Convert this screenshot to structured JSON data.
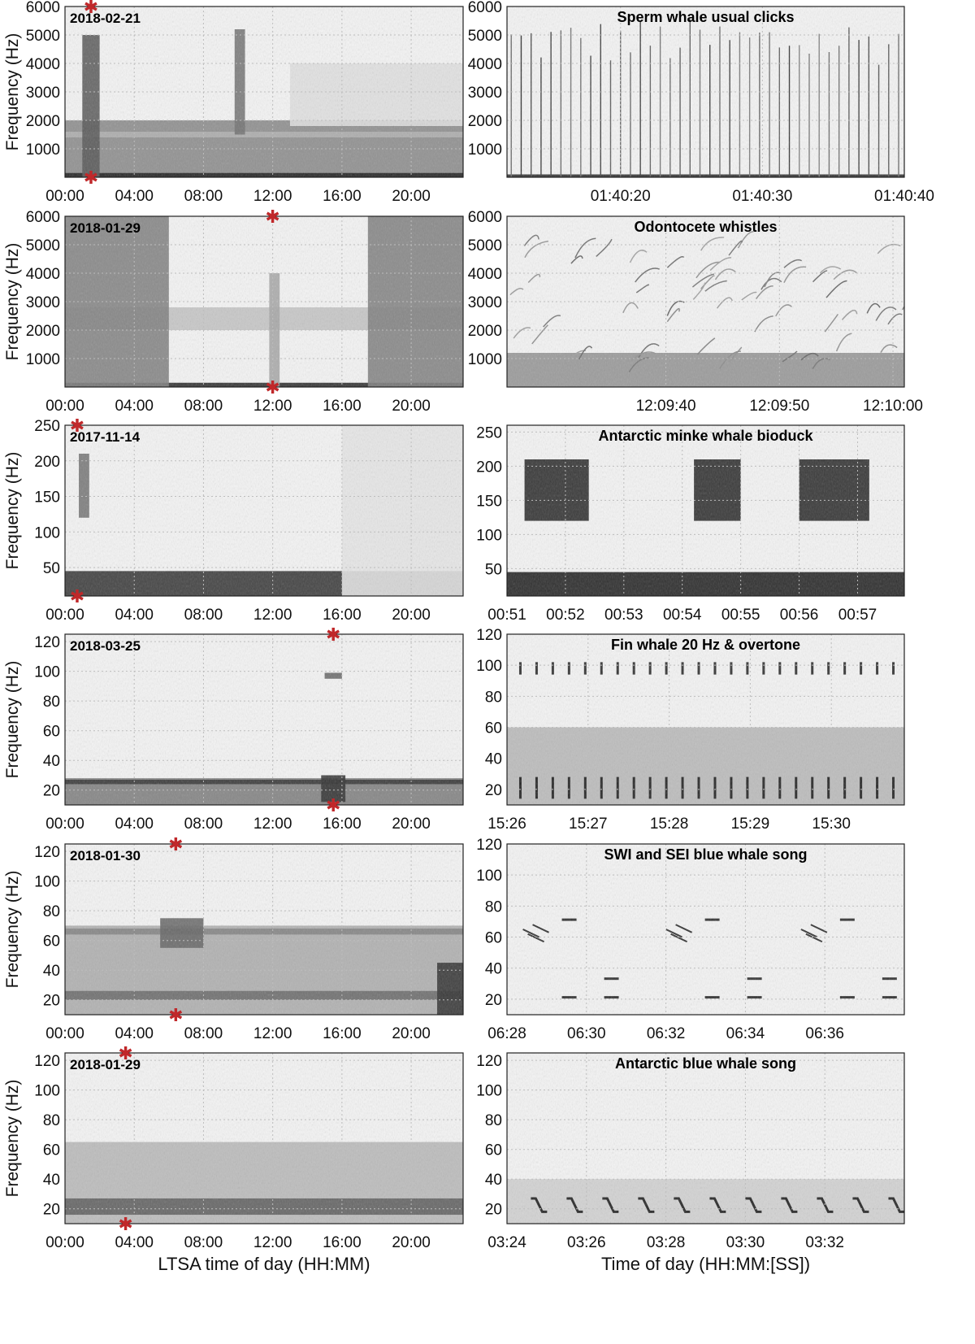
{
  "chart_data": [
    {
      "type": "heatmap",
      "panel": "left",
      "date_label": "2018-02-21",
      "ylabel": "Frequency (Hz)",
      "ylim": [
        0,
        6000
      ],
      "yticks": [
        1000,
        2000,
        3000,
        4000,
        5000,
        6000
      ],
      "xlim_hours": [
        0,
        23
      ],
      "xticks": [
        "00:00",
        "04:00",
        "08:00",
        "12:00",
        "16:00",
        "20:00"
      ],
      "marker_time_hours": 1.5,
      "events": [
        {
          "t0": 1.0,
          "t1": 2.0,
          "f0": 0,
          "f1": 5000,
          "level": 0.65
        },
        {
          "t0": 9.8,
          "t1": 10.4,
          "f0": 1500,
          "f1": 5200,
          "level": 0.55
        },
        {
          "t0": 13.0,
          "t1": 23.0,
          "f0": 1800,
          "f1": 4000,
          "level": 0.12
        }
      ],
      "bands": [
        {
          "f0": 0,
          "f1": 2000,
          "level": 0.5
        },
        {
          "f0": 1400,
          "f1": 1600,
          "level": 0.3
        },
        {
          "f0": 0,
          "f1": 150,
          "level": 0.9
        }
      ]
    },
    {
      "type": "heatmap",
      "panel": "right",
      "title": "Sperm whale usual clicks",
      "ylim": [
        0,
        6000
      ],
      "yticks": [
        1000,
        2000,
        3000,
        4000,
        5000,
        6000
      ],
      "x_start": "01:40:12",
      "x_end": "01:40:40",
      "xticks": [
        "01:40:20",
        "01:40:30",
        "01:40:40"
      ],
      "xtick_pos": [
        8,
        18,
        28
      ],
      "xlim": [
        0,
        28
      ],
      "events": [
        {
          "kind": "clicks",
          "interval_s": 0.7,
          "f0": 0,
          "f1": 5600,
          "level": 0.8
        }
      ],
      "bands": [
        {
          "f0": 0,
          "f1": 100,
          "level": 0.9
        }
      ]
    },
    {
      "type": "heatmap",
      "panel": "left",
      "date_label": "2018-01-29",
      "ylabel": "Frequency (Hz)",
      "ylim": [
        0,
        6000
      ],
      "yticks": [
        1000,
        2000,
        3000,
        4000,
        5000,
        6000
      ],
      "xlim_hours": [
        0,
        23
      ],
      "xticks": [
        "00:00",
        "04:00",
        "08:00",
        "12:00",
        "16:00",
        "20:00"
      ],
      "marker_time_hours": 12.0,
      "events": [
        {
          "t0": 0,
          "t1": 6.0,
          "f0": 0,
          "f1": 6000,
          "level": 0.5
        },
        {
          "t0": 17.5,
          "t1": 23.0,
          "f0": 0,
          "f1": 6000,
          "level": 0.5
        },
        {
          "t0": 11.8,
          "t1": 12.4,
          "f0": 0,
          "f1": 4000,
          "level": 0.35
        }
      ],
      "bands": [
        {
          "f0": 2000,
          "f1": 2800,
          "level": 0.25
        },
        {
          "f0": 0,
          "f1": 150,
          "level": 0.9
        }
      ]
    },
    {
      "type": "heatmap",
      "panel": "right",
      "title": "Odontocete whistles",
      "ylim": [
        0,
        6000
      ],
      "yticks": [
        1000,
        2000,
        3000,
        4000,
        5000,
        6000
      ],
      "x_start": "12:09:26",
      "x_end": "12:10:01",
      "xticks": [
        "12:09:40",
        "12:09:50",
        "12:10:00"
      ],
      "xtick_pos": [
        14,
        24,
        34
      ],
      "xlim": [
        0,
        35
      ],
      "events": [
        {
          "kind": "whistles",
          "f0": 500,
          "f1": 5000,
          "level": 0.6
        }
      ],
      "bands": [
        {
          "f0": 0,
          "f1": 1200,
          "level": 0.45
        }
      ]
    },
    {
      "type": "heatmap",
      "panel": "left",
      "date_label": "2017-11-14",
      "ylabel": "Frequency (Hz)",
      "ylim": [
        10,
        250
      ],
      "yticks": [
        50,
        100,
        150,
        200,
        250
      ],
      "xlim_hours": [
        0,
        23
      ],
      "xticks": [
        "00:00",
        "04:00",
        "08:00",
        "12:00",
        "16:00",
        "20:00"
      ],
      "marker_time_hours": 0.7,
      "events": [
        {
          "t0": 0.8,
          "t1": 1.4,
          "f0": 120,
          "f1": 210,
          "level": 0.55
        },
        {
          "t0": 16.0,
          "t1": 23.0,
          "f0": 10,
          "f1": 250,
          "level": 0.1
        }
      ],
      "bands": [
        {
          "f0": 10,
          "f1": 45,
          "level": 0.85
        }
      ]
    },
    {
      "type": "heatmap",
      "panel": "right",
      "title": "Antarctic minke whale bioduck",
      "ylim": [
        10,
        260
      ],
      "yticks": [
        50,
        100,
        150,
        200,
        250
      ],
      "xticks": [
        "00:51",
        "00:52",
        "00:53",
        "00:54",
        "00:55",
        "00:56",
        "00:57"
      ],
      "xtick_pos": [
        0,
        1,
        2,
        3,
        4,
        5,
        6
      ],
      "xlim": [
        0,
        6.8
      ],
      "events": [
        {
          "t0": 0.3,
          "t1": 1.4,
          "f0": 120,
          "f1": 210,
          "level": 0.85
        },
        {
          "t0": 3.2,
          "t1": 4.0,
          "f0": 120,
          "f1": 210,
          "level": 0.85
        },
        {
          "t0": 5.0,
          "t1": 6.2,
          "f0": 120,
          "f1": 210,
          "level": 0.85
        }
      ],
      "bands": [
        {
          "f0": 10,
          "f1": 45,
          "level": 0.95
        }
      ]
    },
    {
      "type": "heatmap",
      "panel": "left",
      "date_label": "2018-03-25",
      "ylabel": "Frequency (Hz)",
      "ylim": [
        10,
        125
      ],
      "yticks": [
        20,
        40,
        60,
        80,
        100,
        120
      ],
      "xlim_hours": [
        0,
        23
      ],
      "xticks": [
        "00:00",
        "04:00",
        "08:00",
        "12:00",
        "16:00",
        "20:00"
      ],
      "marker_time_hours": 15.5,
      "events": [
        {
          "t0": 14.8,
          "t1": 16.2,
          "f0": 12,
          "f1": 30,
          "level": 0.8
        },
        {
          "t0": 15.0,
          "t1": 16.0,
          "f0": 95,
          "f1": 99,
          "level": 0.6
        }
      ],
      "bands": [
        {
          "f0": 10,
          "f1": 28,
          "level": 0.55
        },
        {
          "f0": 24,
          "f1": 27,
          "level": 0.8
        }
      ]
    },
    {
      "type": "heatmap",
      "panel": "right",
      "title": "Fin whale 20 Hz & overtone",
      "ylim": [
        10,
        120
      ],
      "yticks": [
        20,
        40,
        60,
        80,
        100,
        120
      ],
      "xticks": [
        "15:26",
        "15:27",
        "15:28",
        "15:29",
        "15:30"
      ],
      "xtick_pos": [
        0,
        1,
        2,
        3,
        4
      ],
      "xlim": [
        0,
        4.9
      ],
      "events": [
        {
          "kind": "pulses",
          "interval_min": 0.2,
          "f0": 14,
          "f1": 28,
          "level": 0.85
        },
        {
          "kind": "pulses",
          "interval_min": 0.2,
          "f0": 94,
          "f1": 102,
          "level": 0.8
        }
      ],
      "bands": [
        {
          "f0": 10,
          "f1": 60,
          "level": 0.3
        }
      ]
    },
    {
      "type": "heatmap",
      "panel": "left",
      "date_label": "2018-01-30",
      "ylabel": "Frequency (Hz)",
      "ylim": [
        10,
        125
      ],
      "yticks": [
        20,
        40,
        60,
        80,
        100,
        120
      ],
      "xlim_hours": [
        0,
        23
      ],
      "xticks": [
        "00:00",
        "04:00",
        "08:00",
        "12:00",
        "16:00",
        "20:00"
      ],
      "marker_time_hours": 6.4,
      "events": [
        {
          "t0": 5.5,
          "t1": 8.0,
          "f0": 55,
          "f1": 75,
          "level": 0.6
        },
        {
          "t0": 21.5,
          "t1": 23.0,
          "f0": 10,
          "f1": 45,
          "level": 0.8
        }
      ],
      "bands": [
        {
          "f0": 10,
          "f1": 70,
          "level": 0.35
        },
        {
          "f0": 64,
          "f1": 68,
          "level": 0.5
        },
        {
          "f0": 20,
          "f1": 26,
          "level": 0.6
        }
      ]
    },
    {
      "type": "heatmap",
      "panel": "right",
      "title": "SWI and SEI blue whale song",
      "ylim": [
        10,
        120
      ],
      "yticks": [
        20,
        40,
        60,
        80,
        100,
        120
      ],
      "xticks": [
        "06:28",
        "06:30",
        "06:32",
        "06:34",
        "06:36"
      ],
      "xtick_pos": [
        0,
        2,
        4,
        6,
        8
      ],
      "xlim": [
        0,
        10
      ],
      "events": [
        {
          "kind": "song",
          "f0": 18,
          "f1": 85,
          "level": 0.8
        }
      ],
      "bands": []
    },
    {
      "type": "heatmap",
      "panel": "left",
      "date_label": "2018-01-29",
      "ylabel": "Frequency (Hz)",
      "ylim": [
        10,
        125
      ],
      "yticks": [
        20,
        40,
        60,
        80,
        100,
        120
      ],
      "xlim_hours": [
        0,
        23
      ],
      "xticks": [
        "00:00",
        "04:00",
        "08:00",
        "12:00",
        "16:00",
        "20:00"
      ],
      "xlabel": "LTSA time of day (HH:MM)",
      "marker_time_hours": 3.5,
      "events": [],
      "bands": [
        {
          "f0": 10,
          "f1": 65,
          "level": 0.3
        },
        {
          "f0": 16,
          "f1": 27,
          "level": 0.65
        }
      ]
    },
    {
      "type": "heatmap",
      "panel": "right",
      "title": "Antarctic blue whale song",
      "ylim": [
        10,
        125
      ],
      "yticks": [
        20,
        40,
        60,
        80,
        100,
        120
      ],
      "xticks": [
        "03:24",
        "03:26",
        "03:28",
        "03:30",
        "03:32"
      ],
      "xtick_pos": [
        0,
        2,
        4,
        6,
        8
      ],
      "xlim": [
        0,
        10
      ],
      "xlabel": "Time of day (HH:MM:[SS])",
      "events": [
        {
          "kind": "zcalls",
          "f0": 18,
          "f1": 27,
          "level": 0.85
        }
      ],
      "bands": [
        {
          "f0": 10,
          "f1": 40,
          "level": 0.2
        }
      ]
    }
  ],
  "colors": {
    "marker": "#c0282a",
    "axis": "#222222",
    "grid": "#bdbdbd",
    "ink": "#111111"
  }
}
